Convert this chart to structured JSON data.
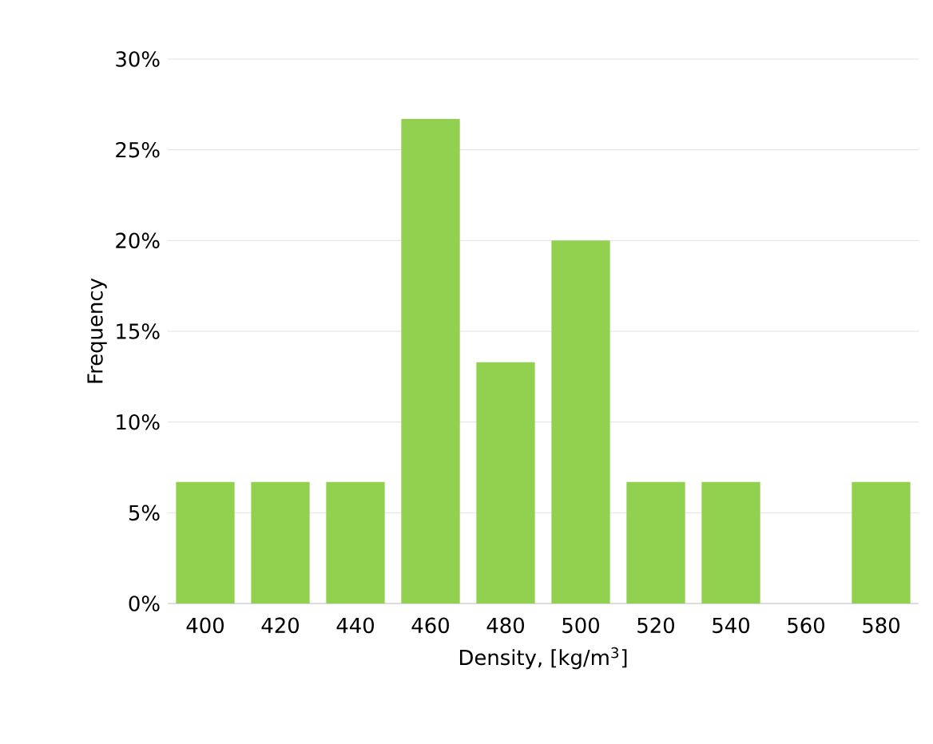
{
  "chart_data": {
    "type": "bar",
    "xlabel": "Density, [kg/m$^{3}$]",
    "ylabel": "Frequency",
    "categories": [
      "400",
      "420",
      "440",
      "460",
      "480",
      "500",
      "520",
      "540",
      "560",
      "580"
    ],
    "values": [
      6.7,
      6.7,
      6.7,
      26.7,
      13.3,
      20,
      6.7,
      6.7,
      0,
      6.7
    ],
    "color": "#92d050",
    "ylim": [
      0,
      30
    ],
    "yticks": [
      {
        "value": 0,
        "label": "0%"
      },
      {
        "value": 5,
        "label": "5%"
      },
      {
        "value": 10,
        "label": "10%"
      },
      {
        "value": 15,
        "label": "15%"
      },
      {
        "value": 20,
        "label": "20%"
      },
      {
        "value": 25,
        "label": "25%"
      },
      {
        "value": 30,
        "label": "30%"
      }
    ],
    "grid": "y"
  }
}
